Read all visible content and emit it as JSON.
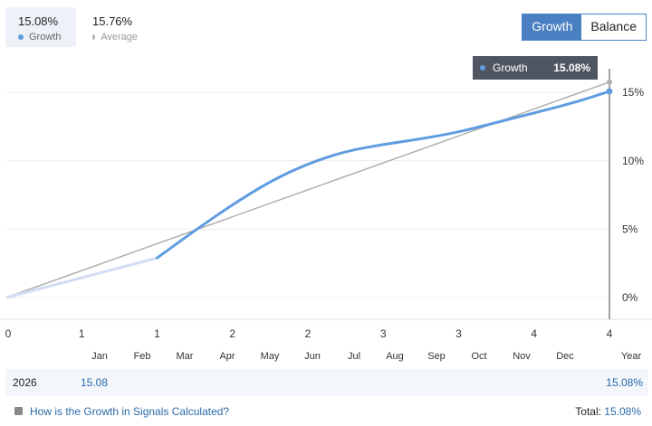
{
  "legend": {
    "growth": {
      "value": "15.08%",
      "label": "Growth",
      "color": "#5f9ce0"
    },
    "average": {
      "value": "15.76%",
      "label": "Average",
      "color": "#b0b0b0"
    }
  },
  "toggle": {
    "growth_label": "Growth",
    "balance_label": "Balance"
  },
  "tooltip": {
    "label": "Growth",
    "value": "15.08%"
  },
  "chart_data": {
    "type": "line",
    "y_ticks": [
      "0%",
      "5%",
      "10%",
      "15%"
    ],
    "ylim": [
      0,
      16.5
    ],
    "x_ticks": [
      "0",
      "1",
      "1",
      "2",
      "2",
      "3",
      "3",
      "4",
      "4"
    ],
    "months": [
      "Jan",
      "Feb",
      "Mar",
      "Apr",
      "May",
      "Jun",
      "Jul",
      "Aug",
      "Sep",
      "Oct",
      "Nov",
      "Dec",
      "Year"
    ],
    "series": [
      {
        "name": "Growth",
        "color": "#5f9ce0",
        "x": [
          0,
          1.5,
          2.0,
          2.5,
          3.0,
          3.5,
          4.0,
          4.5,
          5.0,
          5.5,
          6.0,
          6.5,
          7.0,
          7.5,
          8.0
        ],
        "y": [
          0,
          1.4,
          2.9,
          4.9,
          6.8,
          8.5,
          9.8,
          10.7,
          11.2,
          11.6,
          12.1,
          12.8,
          13.5,
          14.2,
          15.08
        ]
      },
      {
        "name": "Average",
        "color": "#b0b0b0",
        "x": [
          0,
          8.0
        ],
        "y": [
          0,
          15.76
        ]
      }
    ]
  },
  "year_row": {
    "year": "2026",
    "value": "15.08",
    "total": "15.08%"
  },
  "footer": {
    "help_link": "How is the Growth in Signals Calculated?",
    "total_label": "Total:",
    "total_value": "15.08%"
  }
}
